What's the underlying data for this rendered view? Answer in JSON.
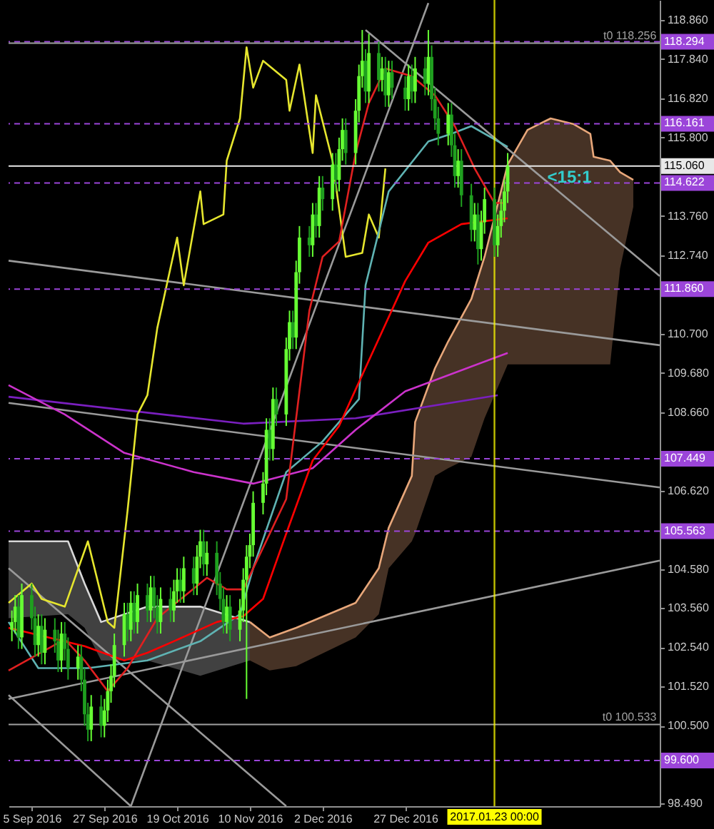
{
  "chart_data": {
    "type": "candlestick",
    "grid": false,
    "xlim": [
      "2016-08-29",
      "2017-03-14"
    ],
    "ylim": [
      98.41,
      119.38
    ],
    "xticks": [
      {
        "value": "2016-09-05",
        "label": "5 Sep 2016"
      },
      {
        "value": "2016-09-27",
        "label": "27 Sep 2016"
      },
      {
        "value": "2016-10-19",
        "label": "19 Oct 2016"
      },
      {
        "value": "2016-11-10",
        "label": "10 Nov 2016"
      },
      {
        "value": "2016-12-02",
        "label": "2 Dec 2016"
      },
      {
        "value": "2016-12-27",
        "label": "27 Dec 2016"
      }
    ],
    "yticks": [
      {
        "value": 118.86,
        "label": "118.860"
      },
      {
        "value": 117.84,
        "label": "117.840"
      },
      {
        "value": 116.82,
        "label": "116.820"
      },
      {
        "value": 115.8,
        "label": "115.800"
      },
      {
        "value": 113.76,
        "label": "113.760"
      },
      {
        "value": 112.74,
        "label": "112.740"
      },
      {
        "value": 110.7,
        "label": "110.700"
      },
      {
        "value": 109.68,
        "label": "109.680"
      },
      {
        "value": 108.66,
        "label": "108.660"
      },
      {
        "value": 106.62,
        "label": "106.620"
      },
      {
        "value": 104.58,
        "label": "104.580"
      },
      {
        "value": 103.56,
        "label": "103.560"
      },
      {
        "value": 102.54,
        "label": "102.540"
      },
      {
        "value": 101.52,
        "label": "101.520"
      },
      {
        "value": 100.5,
        "label": "100.500"
      },
      {
        "value": 98.49,
        "label": "98.490"
      }
    ],
    "x": [
      "2016-08-30",
      "2016-08-31",
      "2016-09-01",
      "2016-09-02",
      "2016-09-05",
      "2016-09-06",
      "2016-09-07",
      "2016-09-08",
      "2016-09-09",
      "2016-09-12",
      "2016-09-13",
      "2016-09-14",
      "2016-09-15",
      "2016-09-16",
      "2016-09-19",
      "2016-09-20",
      "2016-09-21",
      "2016-09-22",
      "2016-09-23",
      "2016-09-26",
      "2016-09-27",
      "2016-09-28",
      "2016-09-29",
      "2016-09-30",
      "2016-10-03",
      "2016-10-04",
      "2016-10-05",
      "2016-10-06",
      "2016-10-07",
      "2016-10-10",
      "2016-10-11",
      "2016-10-12",
      "2016-10-13",
      "2016-10-14",
      "2016-10-17",
      "2016-10-18",
      "2016-10-19",
      "2016-10-20",
      "2016-10-21",
      "2016-10-24",
      "2016-10-25",
      "2016-10-26",
      "2016-10-27",
      "2016-10-28",
      "2016-10-31",
      "2016-11-01",
      "2016-11-02",
      "2016-11-03",
      "2016-11-04",
      "2016-11-07",
      "2016-11-08",
      "2016-11-09",
      "2016-11-10",
      "2016-11-11",
      "2016-11-14",
      "2016-11-15",
      "2016-11-16",
      "2016-11-17",
      "2016-11-18",
      "2016-11-21",
      "2016-11-22",
      "2016-11-23",
      "2016-11-24",
      "2016-11-25",
      "2016-11-28",
      "2016-11-29",
      "2016-11-30",
      "2016-12-01",
      "2016-12-02",
      "2016-12-05",
      "2016-12-06",
      "2016-12-07",
      "2016-12-08",
      "2016-12-09",
      "2016-12-12",
      "2016-12-13",
      "2016-12-14",
      "2016-12-15",
      "2016-12-16",
      "2016-12-19",
      "2016-12-20",
      "2016-12-21",
      "2016-12-22",
      "2016-12-23",
      "2016-12-27",
      "2016-12-28",
      "2016-12-29",
      "2016-12-30",
      "2017-01-02",
      "2017-01-03",
      "2017-01-04",
      "2017-01-05",
      "2017-01-06",
      "2017-01-09",
      "2017-01-10",
      "2017-01-11",
      "2017-01-12",
      "2017-01-13",
      "2017-01-16",
      "2017-01-17",
      "2017-01-18",
      "2017-01-19",
      "2017-01-20",
      "2017-01-23",
      "2017-01-24",
      "2017-01-25",
      "2017-01-26",
      "2017-01-27"
    ],
    "ohlc": [
      [
        103.0,
        103.5,
        102.7,
        103.2
      ],
      [
        103.2,
        103.9,
        102.9,
        103.6
      ],
      [
        103.6,
        103.9,
        102.5,
        102.8
      ],
      [
        102.8,
        104.2,
        102.5,
        103.9
      ],
      [
        103.9,
        104.2,
        103.0,
        103.3
      ],
      [
        103.3,
        103.6,
        102.3,
        102.6
      ],
      [
        102.6,
        103.4,
        102.3,
        103.1
      ],
      [
        103.1,
        103.4,
        102.1,
        102.4
      ],
      [
        102.4,
        103.3,
        102.1,
        103.0
      ],
      [
        103.0,
        103.3,
        102.4,
        102.7
      ],
      [
        102.7,
        103.0,
        101.9,
        102.2
      ],
      [
        102.2,
        103.2,
        101.9,
        102.9
      ],
      [
        102.9,
        103.2,
        102.2,
        102.5
      ],
      [
        102.5,
        102.8,
        101.7,
        102.0
      ],
      [
        102.0,
        102.6,
        101.7,
        102.3
      ],
      [
        102.3,
        102.6,
        101.4,
        101.7
      ],
      [
        101.7,
        102.0,
        100.5,
        100.8
      ],
      [
        100.8,
        101.1,
        100.1,
        100.4
      ],
      [
        100.4,
        101.3,
        100.1,
        101.0
      ],
      [
        101.0,
        101.3,
        100.2,
        100.5
      ],
      [
        100.5,
        101.2,
        100.2,
        100.9
      ],
      [
        100.9,
        101.7,
        100.6,
        101.4
      ],
      [
        101.4,
        102.1,
        101.1,
        101.8
      ],
      [
        101.8,
        102.9,
        101.5,
        102.6
      ],
      [
        102.6,
        103.7,
        102.3,
        103.4
      ],
      [
        103.4,
        103.7,
        102.7,
        103.0
      ],
      [
        103.0,
        104.0,
        102.7,
        103.7
      ],
      [
        103.7,
        104.0,
        102.9,
        103.2
      ],
      [
        103.2,
        104.2,
        102.9,
        103.9
      ],
      [
        103.9,
        104.2,
        103.2,
        103.5
      ],
      [
        103.5,
        104.4,
        103.2,
        104.1
      ],
      [
        104.1,
        104.4,
        103.3,
        103.6
      ],
      [
        103.6,
        103.9,
        102.9,
        103.2
      ],
      [
        103.2,
        104.1,
        102.9,
        103.8
      ],
      [
        103.8,
        104.1,
        103.2,
        103.5
      ],
      [
        103.5,
        104.3,
        103.2,
        104.0
      ],
      [
        104.0,
        104.6,
        103.7,
        104.3
      ],
      [
        104.3,
        104.6,
        103.7,
        104.0
      ],
      [
        104.0,
        104.9,
        103.7,
        104.6
      ],
      [
        104.6,
        104.9,
        103.9,
        104.2
      ],
      [
        104.2,
        105.2,
        103.9,
        104.9
      ],
      [
        104.9,
        105.6,
        104.6,
        105.3
      ],
      [
        105.3,
        105.6,
        104.4,
        104.7
      ],
      [
        104.7,
        105.3,
        104.4,
        105.0
      ],
      [
        105.0,
        105.3,
        103.9,
        104.2
      ],
      [
        104.2,
        104.5,
        103.5,
        103.8
      ],
      [
        103.8,
        104.1,
        102.9,
        103.2
      ],
      [
        103.2,
        103.9,
        102.9,
        103.6
      ],
      [
        103.6,
        103.9,
        102.7,
        103.0
      ],
      [
        103.0,
        103.8,
        102.7,
        103.5
      ],
      [
        103.5,
        104.6,
        103.2,
        104.3
      ],
      [
        104.3,
        105.2,
        101.2,
        104.9
      ],
      [
        104.9,
        105.5,
        104.6,
        105.2
      ],
      [
        105.2,
        106.6,
        104.9,
        106.3
      ],
      [
        106.3,
        107.1,
        106.0,
        106.8
      ],
      [
        106.8,
        108.5,
        106.5,
        108.2
      ],
      [
        108.2,
        108.5,
        107.4,
        107.7
      ],
      [
        107.7,
        109.3,
        107.4,
        109.0
      ],
      [
        109.0,
        109.3,
        108.3,
        108.6
      ],
      [
        108.6,
        110.6,
        108.3,
        110.3
      ],
      [
        110.3,
        111.3,
        110.0,
        111.0
      ],
      [
        111.0,
        111.3,
        110.3,
        110.6
      ],
      [
        110.6,
        112.6,
        110.3,
        112.3
      ],
      [
        112.3,
        113.5,
        112.0,
        113.2
      ],
      [
        113.2,
        113.5,
        112.7,
        113.0
      ],
      [
        113.0,
        114.1,
        112.7,
        113.8
      ],
      [
        113.8,
        114.1,
        113.2,
        113.5
      ],
      [
        113.5,
        114.8,
        113.2,
        114.5
      ],
      [
        114.5,
        114.8,
        113.9,
        114.2
      ],
      [
        114.2,
        115.4,
        113.9,
        115.1
      ],
      [
        115.1,
        115.4,
        114.4,
        114.7
      ],
      [
        114.7,
        115.8,
        114.4,
        115.5
      ],
      [
        115.5,
        116.3,
        115.2,
        116.0
      ],
      [
        116.0,
        116.3,
        115.1,
        115.4
      ],
      [
        115.4,
        116.8,
        115.1,
        116.5
      ],
      [
        116.5,
        117.7,
        116.2,
        117.4
      ],
      [
        117.4,
        118.6,
        117.1,
        117.8
      ],
      [
        117.8,
        118.1,
        116.7,
        117.0
      ],
      [
        117.0,
        118.5,
        116.7,
        118.0
      ],
      [
        118.0,
        118.3,
        117.0,
        117.3
      ],
      [
        117.3,
        117.9,
        117.0,
        117.6
      ],
      [
        117.6,
        117.9,
        116.6,
        116.9
      ],
      [
        116.9,
        117.8,
        116.6,
        117.5
      ],
      [
        117.5,
        117.8,
        116.8,
        117.1
      ],
      [
        117.1,
        117.4,
        116.5,
        116.8
      ],
      [
        116.8,
        117.7,
        116.5,
        117.4
      ],
      [
        117.4,
        117.7,
        116.7,
        117.0
      ],
      [
        117.0,
        117.9,
        116.7,
        117.6
      ],
      [
        117.6,
        117.9,
        116.9,
        117.2
      ],
      [
        117.2,
        118.6,
        116.9,
        117.9
      ],
      [
        117.9,
        118.2,
        116.5,
        116.8
      ],
      [
        116.8,
        117.1,
        116.0,
        116.3
      ],
      [
        116.3,
        116.6,
        115.6,
        115.9
      ],
      [
        115.9,
        116.7,
        115.6,
        116.4
      ],
      [
        116.4,
        116.7,
        115.3,
        115.6
      ],
      [
        115.6,
        115.9,
        114.5,
        114.8
      ],
      [
        114.8,
        115.5,
        114.5,
        115.2
      ],
      [
        115.2,
        115.5,
        114.0,
        114.3
      ],
      [
        114.3,
        114.6,
        113.1,
        113.4
      ],
      [
        113.4,
        114.1,
        113.1,
        113.8
      ],
      [
        113.8,
        114.1,
        112.5,
        112.9
      ],
      [
        112.9,
        113.9,
        112.6,
        113.6
      ],
      [
        113.6,
        114.5,
        113.3,
        114.2
      ],
      [
        114.2,
        114.5,
        112.7,
        113.0
      ],
      [
        113.0,
        113.8,
        112.7,
        113.5
      ],
      [
        113.5,
        114.2,
        113.2,
        113.9
      ],
      [
        113.9,
        114.7,
        113.6,
        114.4
      ],
      [
        114.4,
        115.4,
        114.1,
        115.06
      ]
    ],
    "colors": [
      "#66ff33",
      "#66ff33",
      "#1f9f1f",
      "#66ff33",
      "#1f9f1f",
      "#1f9f1f",
      "#66ff33",
      "#1f9f1f",
      "#66ff33",
      "#1f9f1f",
      "#1f9f1f",
      "#66ff33",
      "#1f9f1f",
      "#1f9f1f",
      "#66ff33",
      "#1f9f1f",
      "#1f9f1f",
      "#1f9f1f",
      "#66ff33",
      "#1f9f1f",
      "#66ff33",
      "#66ff33",
      "#66ff33",
      "#66ff33",
      "#66ff33",
      "#1f9f1f",
      "#66ff33",
      "#1f9f1f",
      "#66ff33",
      "#1f9f1f",
      "#66ff33",
      "#1f9f1f",
      "#1f9f1f",
      "#66ff33",
      "#1f9f1f",
      "#66ff33",
      "#66ff33",
      "#1f9f1f",
      "#66ff33",
      "#1f9f1f",
      "#66ff33",
      "#66ff33",
      "#1f9f1f",
      "#66ff33",
      "#1f9f1f",
      "#1f9f1f",
      "#1f9f1f",
      "#66ff33",
      "#1f9f1f",
      "#66ff33",
      "#66ff33",
      "#66ff33",
      "#66ff33",
      "#66ff33",
      "#66ff33",
      "#66ff33",
      "#1f9f1f",
      "#66ff33",
      "#1f9f1f",
      "#66ff33",
      "#66ff33",
      "#1f9f1f",
      "#66ff33",
      "#66ff33",
      "#1f9f1f",
      "#66ff33",
      "#1f9f1f",
      "#66ff33",
      "#1f9f1f",
      "#66ff33",
      "#1f9f1f",
      "#66ff33",
      "#66ff33",
      "#1f9f1f",
      "#66ff33",
      "#66ff33",
      "#66ff33",
      "#1f9f1f",
      "#66ff33",
      "#1f9f1f",
      "#66ff33",
      "#1f9f1f",
      "#66ff33",
      "#1f9f1f",
      "#1f9f1f",
      "#66ff33",
      "#1f9f1f",
      "#66ff33",
      "#1f9f1f",
      "#66ff33",
      "#1f9f1f",
      "#1f9f1f",
      "#1f9f1f",
      "#66ff33",
      "#1f9f1f",
      "#1f9f1f",
      "#66ff33",
      "#1f9f1f",
      "#1f9f1f",
      "#66ff33",
      "#1f9f1f",
      "#66ff33",
      "#66ff33",
      "#1f9f1f",
      "#66ff33",
      "#66ff33",
      "#66ff33",
      "#66ff33"
    ],
    "series": [
      {
        "type": "line",
        "color": "#d8d8d8",
        "upper": [
          105.3,
          105.3,
          104.2,
          103.2,
          103.6,
          103.6,
          103.2
        ],
        "x": [
          "2016-08-29",
          "2016-09-16",
          "2016-09-21",
          "2016-09-26",
          "2016-10-10",
          "2016-10-26",
          "2016-11-10"
        ],
        "values": [
          105.3,
          105.3,
          104.2,
          103.2,
          103.6,
          103.6,
          103.2
        ],
        "lower": [
          103.3,
          103.4,
          103.05,
          102.2,
          102.2,
          101.8,
          102.2
        ]
      },
      {
        "type": "line",
        "color": "#e8a77a",
        "upper": [
          103.2,
          102.8,
          103.05,
          103.7,
          104.6,
          105.65,
          107.0,
          108.4,
          109.8,
          110.5,
          111.6,
          112.7,
          115.1,
          116.0,
          116.3,
          116.15,
          115.9,
          115.3,
          115.2,
          114.9,
          114.7
        ],
        "x": [
          "2016-11-10",
          "2016-11-16",
          "2016-11-24",
          "2016-12-12",
          "2016-12-19",
          "2016-12-22",
          "2016-12-29",
          "2016-12-30",
          "2017-01-05",
          "2017-01-09",
          "2017-01-16",
          "2017-01-20",
          "2017-01-27",
          "2017-02-02",
          "2017-02-09",
          "2017-02-16",
          "2017-02-21",
          "2017-02-22",
          "2017-02-27",
          "2017-03-02",
          "2017-03-06"
        ],
        "values": [
          103.2,
          102.8,
          103.05,
          103.7,
          104.6,
          105.65,
          107.0,
          108.4,
          109.8,
          110.5,
          111.6,
          112.7,
          115.1,
          116.0,
          116.3,
          116.15,
          115.9,
          115.3,
          115.2,
          114.9,
          114.7
        ],
        "lower": [
          102.2,
          101.94,
          102.05,
          102.8,
          103.4,
          104.6,
          105.3,
          105.5,
          107.0,
          107.2,
          107.5,
          108.5,
          109.9,
          109.9,
          109.9,
          109.9,
          109.9,
          109.9,
          109.9,
          112.4,
          114.0
        ]
      },
      {
        "type": "line",
        "color": "#9a9a9a",
        "x": [
          "2016-08-29",
          "2016-11-21"
        ],
        "values": [
          104.6,
          98.41
        ]
      },
      {
        "type": "line",
        "color": "#9a9a9a",
        "x": [
          "2016-08-29",
          "2016-10-05"
        ],
        "values": [
          101.3,
          98.41
        ]
      },
      {
        "type": "line",
        "color": "#9a9a9a",
        "x": [
          "2016-10-05",
          "2017-01-03"
        ],
        "values": [
          98.41,
          119.3
        ]
      },
      {
        "type": "line",
        "color": "#9a9a9a",
        "x": [
          "2016-08-29",
          "2017-03-14"
        ],
        "values": [
          112.6,
          110.4
        ]
      },
      {
        "type": "line",
        "color": "#9a9a9a",
        "x": [
          "2016-08-29",
          "2017-03-14"
        ],
        "values": [
          101.2,
          104.8
        ]
      },
      {
        "type": "line",
        "color": "#9a9a9a",
        "x": [
          "2016-08-29",
          "2017-03-14"
        ],
        "values": [
          108.9,
          106.7
        ]
      },
      {
        "type": "line",
        "color": "#9a9a9a",
        "x": [
          "2016-12-15",
          "2017-03-14"
        ],
        "values": [
          118.6,
          112.2
        ]
      },
      {
        "type": "line",
        "color": "#7a1fbf",
        "x": [
          "2016-08-29",
          "2016-11-08",
          "2016-12-12",
          "2017-01-24"
        ],
        "values": [
          109.06,
          108.36,
          108.5,
          109.1
        ]
      },
      {
        "type": "line",
        "color": "#cc33cc",
        "x": [
          "2016-08-29",
          "2016-09-15",
          "2016-10-03",
          "2016-10-24",
          "2016-11-11",
          "2016-11-29",
          "2016-12-12",
          "2016-12-27",
          "2017-01-27"
        ],
        "values": [
          109.36,
          108.6,
          107.6,
          107.1,
          106.8,
          107.2,
          108.2,
          109.2,
          110.2
        ]
      },
      {
        "type": "line",
        "color": "#e6e62e",
        "x": [
          "2016-08-29",
          "2016-09-05",
          "2016-09-08",
          "2016-09-15",
          "2016-09-22",
          "2016-09-28",
          "2016-09-30",
          "2016-10-04",
          "2016-10-07",
          "2016-10-10",
          "2016-10-13",
          "2016-10-19",
          "2016-10-21",
          "2016-10-26",
          "2016-10-27",
          "2016-11-02",
          "2016-11-03",
          "2016-11-07",
          "2016-11-09",
          "2016-11-11",
          "2016-11-14",
          "2016-11-21",
          "2016-11-22",
          "2016-11-25",
          "2016-11-29",
          "2016-11-30",
          "2016-12-05",
          "2016-12-09",
          "2016-12-14",
          "2016-12-16",
          "2016-12-19",
          "2016-12-21"
        ],
        "values": [
          103.7,
          104.2,
          103.8,
          103.6,
          105.3,
          103.2,
          103.05,
          106.1,
          108.6,
          109.1,
          110.85,
          113.2,
          111.96,
          114.4,
          113.55,
          113.8,
          115.2,
          116.3,
          118.15,
          117.1,
          117.8,
          117.3,
          116.5,
          117.7,
          115.4,
          116.9,
          115.2,
          112.7,
          112.8,
          113.8,
          113.2,
          115.0
        ]
      },
      {
        "type": "line",
        "color": "#5fb3b3",
        "x": [
          "2016-08-29",
          "2016-09-07",
          "2016-09-22",
          "2016-10-10",
          "2016-10-26",
          "2016-11-07",
          "2016-11-11",
          "2016-11-21",
          "2016-12-02",
          "2016-12-13",
          "2016-12-15",
          "2016-12-22",
          "2017-01-03",
          "2017-01-10",
          "2017-01-16",
          "2017-01-27"
        ],
        "values": [
          103.2,
          102.0,
          102.0,
          102.2,
          102.7,
          103.4,
          104.6,
          107.1,
          107.9,
          109.0,
          111.96,
          114.4,
          115.7,
          115.9,
          116.1,
          115.56
        ]
      },
      {
        "type": "line",
        "color": "#e02020",
        "x": [
          "2016-08-29",
          "2016-09-15",
          "2016-09-21",
          "2016-09-28",
          "2016-10-04",
          "2016-10-13",
          "2016-10-28",
          "2016-11-03",
          "2016-11-08",
          "2016-11-21",
          "2016-11-28",
          "2016-12-02",
          "2016-12-07",
          "2016-12-12",
          "2016-12-16",
          "2016-12-21",
          "2016-12-29",
          "2017-01-05",
          "2017-01-11",
          "2017-01-17",
          "2017-01-23",
          "2017-01-26"
        ],
        "values": [
          101.94,
          102.75,
          102.2,
          101.4,
          102.0,
          103.3,
          104.35,
          104.05,
          104.05,
          106.4,
          111.3,
          112.7,
          113.1,
          115.4,
          116.7,
          117.6,
          117.4,
          116.9,
          116.1,
          115.0,
          114.1,
          114.1
        ]
      },
      {
        "type": "line",
        "color": "#ff0000",
        "x": [
          "2016-08-29",
          "2016-09-21",
          "2016-10-03",
          "2016-10-10",
          "2016-10-18",
          "2016-10-31",
          "2016-11-08",
          "2016-11-14",
          "2016-11-21",
          "2016-11-29",
          "2016-12-07",
          "2016-12-12",
          "2016-12-27",
          "2017-01-03",
          "2017-01-13",
          "2017-01-27"
        ],
        "values": [
          103.05,
          102.57,
          102.2,
          102.4,
          102.7,
          103.2,
          103.35,
          103.8,
          105.5,
          107.4,
          108.3,
          109.25,
          112.07,
          113.07,
          113.55,
          113.7
        ]
      }
    ],
    "ref_lines": [
      {
        "axis": "y",
        "value": 118.294,
        "label": "118.294",
        "color": "#9b45d9",
        "line_style": "dashed"
      },
      {
        "axis": "y",
        "value": 116.161,
        "label": "116.161",
        "color": "#9b45d9",
        "line_style": "dashed"
      },
      {
        "axis": "y",
        "value": 114.622,
        "label": "114.622",
        "color": "#9b45d9",
        "line_style": "dashed"
      },
      {
        "axis": "y",
        "value": 111.86,
        "label": "111.860",
        "color": "#9b45d9",
        "line_style": "dashed"
      },
      {
        "axis": "y",
        "value": 107.449,
        "label": "107.449",
        "color": "#9b45d9",
        "line_style": "dashed"
      },
      {
        "axis": "y",
        "value": 105.563,
        "label": "105.563",
        "color": "#9b45d9",
        "line_style": "dashed"
      },
      {
        "axis": "y",
        "value": 99.6,
        "label": "99.600",
        "color": "#9b45d9",
        "line_style": "dashed"
      },
      {
        "axis": "y",
        "value": 118.256,
        "color": "#a0a0a0",
        "line_style": "solid"
      },
      {
        "axis": "y",
        "value": 100.533,
        "color": "#a0a0a0",
        "line_style": "solid"
      },
      {
        "axis": "y",
        "value": 115.06,
        "label": "115.060",
        "color": "#e8e8e8",
        "line_style": "solid"
      },
      {
        "axis": "x",
        "value": "2017-01-23",
        "label": "2017.01.23 00:00",
        "color": "#ffff00",
        "line_style": "solid"
      }
    ],
    "annotations": [
      {
        "text": "<15:1",
        "x": "2017-02-08",
        "y": 114.78
      },
      {
        "text": "t0 118.256",
        "x": "2017-03-13",
        "y": 118.256
      },
      {
        "text": "t0 100.533",
        "x": "2017-03-13",
        "y": 100.533
      }
    ]
  }
}
